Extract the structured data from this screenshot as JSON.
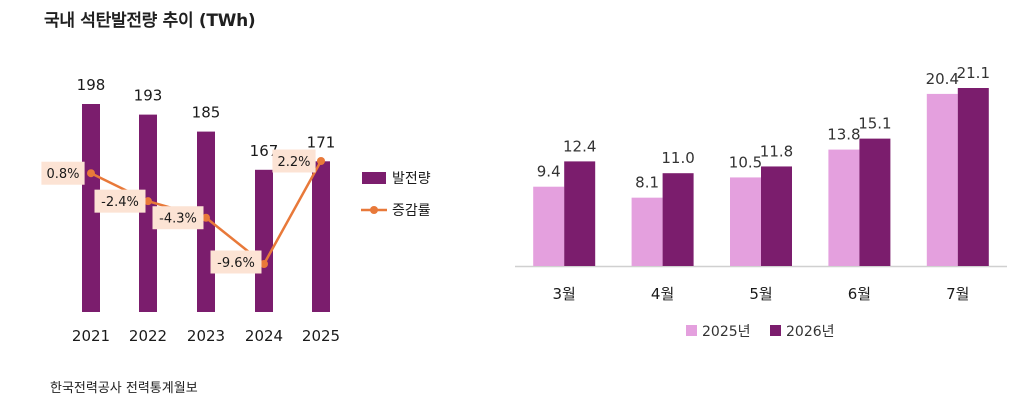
{
  "title": "국내 석탄발전량 추이 (TWh)",
  "source": "한국전력공사 전력통계월보",
  "colors": {
    "bar": "#7b1d6d",
    "line": "#e8793a",
    "rate_label_bg": "#fce3d4",
    "light_bar": "#e4a0de",
    "axis": "#d0d0d0"
  },
  "chart_data": [
    {
      "type": "bar",
      "categories": [
        "2021",
        "2022",
        "2023",
        "2024",
        "2025"
      ],
      "series": [
        {
          "name": "발전량",
          "values": [
            198,
            193,
            185,
            167,
            171
          ],
          "labels": [
            "198",
            "193",
            "185",
            "167",
            "171"
          ]
        }
      ],
      "line_series": [
        {
          "name": "증감률",
          "values": [
            0.8,
            -2.4,
            -4.3,
            -9.6,
            2.2
          ],
          "labels": [
            "0.8%",
            "-2.4%",
            "-4.3%",
            "-9.6%",
            "2.2%"
          ]
        }
      ],
      "legend_position": "right",
      "grid": false
    },
    {
      "type": "bar",
      "categories": [
        "3월",
        "4월",
        "5월",
        "6월",
        "7월"
      ],
      "series": [
        {
          "name": "2025년",
          "values": [
            9.4,
            8.1,
            10.5,
            13.8,
            20.4
          ],
          "labels": [
            "9.4",
            "8.1",
            "10.5",
            "13.8",
            "20.4"
          ]
        },
        {
          "name": "2026년",
          "values": [
            12.4,
            11.0,
            11.8,
            15.1,
            21.1
          ],
          "labels": [
            "12.4",
            "11.0",
            "11.8",
            "15.1",
            "21.1"
          ]
        }
      ],
      "legend_position": "bottom",
      "grid": false
    }
  ]
}
